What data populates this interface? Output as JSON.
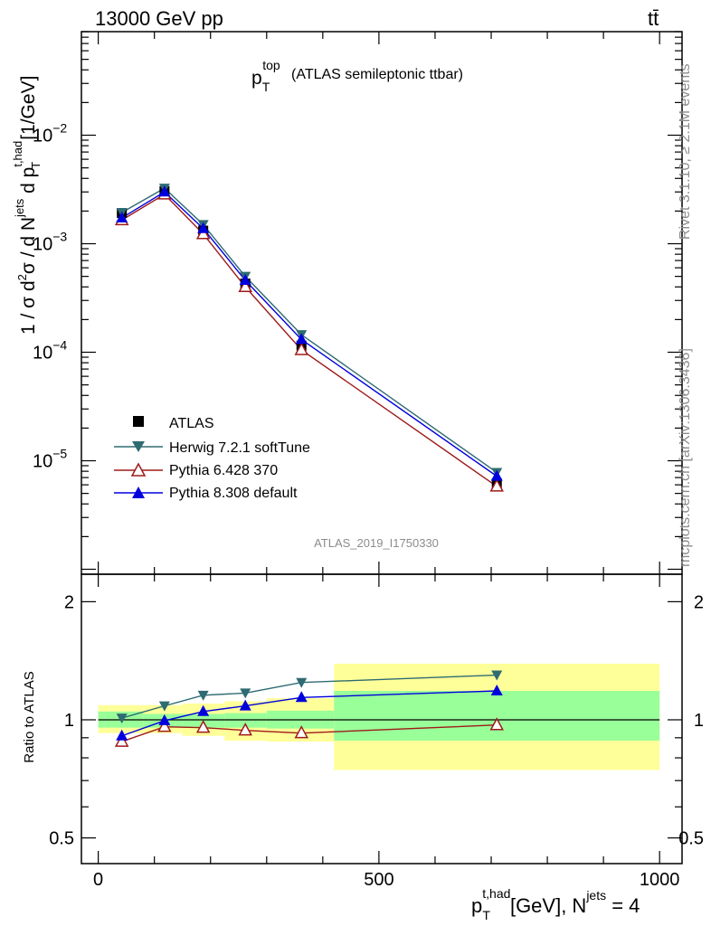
{
  "header": {
    "left": "13000 GeV pp",
    "right": "tt̄"
  },
  "side_text": {
    "rivet": "Rivet 3.1.10, ≥ 2.1M events",
    "mcplots": "mcplots.cern.ch [arXiv:1306.3436]"
  },
  "title": {
    "main": "p",
    "sup": "top",
    "sub": "T",
    "rest": "(ATLAS semileptonic ttbar)"
  },
  "analysis_id": "ATLAS_2019_I1750330",
  "ylabel_top": "1 / σ d²σ / d N^jets d p_T^t,had [1/GeV]",
  "ylabel_bottom": "Ratio to ATLAS",
  "xlabel": "p_T^t,had [GeV], N^jets = 4",
  "legend": [
    {
      "label": "ATLAS",
      "marker": "square",
      "color": "#000000"
    },
    {
      "label": "Herwig 7.2.1 softTune",
      "marker": "triangle-down",
      "color": "#2e6b72"
    },
    {
      "label": "Pythia 6.428 370",
      "marker": "triangle-up-open",
      "color": "#9e1a1a"
    },
    {
      "label": "Pythia 8.308 default",
      "marker": "triangle-up",
      "color": "#0000dd"
    }
  ],
  "chart_data": {
    "type": "line",
    "x_axis": {
      "label": "p_T^t,had [GeV], N^jets = 4",
      "range": [
        -30,
        1040
      ],
      "ticks": [
        0,
        500,
        1000
      ]
    },
    "main_panel": {
      "scale": "log",
      "ylabel": "1 / σ d²σ / d N^jets d p_T^t,had [1/GeV]",
      "y_range": [
        9e-07,
        0.09
      ],
      "tick_labels": [
        "10^-5",
        "10^-4",
        "10^-3",
        "10^-2"
      ],
      "x": [
        42,
        118,
        187,
        262,
        362,
        710
      ],
      "series": [
        {
          "name": "ATLAS",
          "values": [
            0.00192,
            0.00305,
            0.00132,
            0.00043,
            0.000115,
            6.2e-06
          ]
        },
        {
          "name": "Herwig 7.2.1 softTune",
          "values": [
            0.00194,
            0.00325,
            0.0015,
            0.0005,
            0.000145,
            7.8e-06
          ]
        },
        {
          "name": "Pythia 6.428 370",
          "values": [
            0.00165,
            0.00285,
            0.00123,
            0.0004,
            0.000105,
            5.8e-06
          ]
        },
        {
          "name": "Pythia 8.308 default",
          "values": [
            0.00173,
            0.003,
            0.00138,
            0.00046,
            0.000131,
            7.2e-06
          ]
        }
      ]
    },
    "ratio_panel": {
      "scale": "log",
      "ylabel": "Ratio to ATLAS",
      "y_range": [
        0.43,
        2.35
      ],
      "ticks": [
        0.5,
        1,
        2
      ],
      "reference": 1,
      "bands": [
        {
          "x_range": [
            0,
            80
          ],
          "inner": [
            0.955,
            1.05
          ],
          "outer": [
            0.925,
            1.09
          ]
        },
        {
          "x_range": [
            80,
            150
          ],
          "inner": [
            0.955,
            1.035
          ],
          "outer": [
            0.925,
            1.09
          ]
        },
        {
          "x_range": [
            150,
            225
          ],
          "inner": [
            0.955,
            1.035
          ],
          "outer": [
            0.91,
            1.1
          ]
        },
        {
          "x_range": [
            225,
            300
          ],
          "inner": [
            0.955,
            1.04
          ],
          "outer": [
            0.885,
            1.115
          ]
        },
        {
          "x_range": [
            300,
            420
          ],
          "inner": [
            0.95,
            1.055
          ],
          "outer": [
            0.88,
            1.135
          ]
        },
        {
          "x_range": [
            420,
            1000
          ],
          "inner": [
            0.885,
            1.185
          ],
          "outer": [
            0.745,
            1.39
          ]
        }
      ],
      "x": [
        42,
        118,
        187,
        262,
        362,
        710
      ],
      "series": [
        {
          "name": "Herwig 7.2.1 softTune",
          "values": [
            1.01,
            1.085,
            1.155,
            1.17,
            1.245,
            1.3
          ]
        },
        {
          "name": "Pythia 6.428 370",
          "values": [
            0.88,
            0.96,
            0.955,
            0.94,
            0.925,
            0.97
          ]
        },
        {
          "name": "Pythia 8.308 default",
          "values": [
            0.91,
            0.995,
            1.05,
            1.085,
            1.14,
            1.185
          ]
        }
      ]
    },
    "colors": {
      "ATLAS": "#000000",
      "Herwig 7.2.1 softTune": "#2e6b72",
      "Pythia 6.428 370": "#9e1a1a",
      "Pythia 8.308 default": "#0000dd",
      "band_inner": "#99ff99",
      "band_outer": "#ffff99"
    }
  }
}
